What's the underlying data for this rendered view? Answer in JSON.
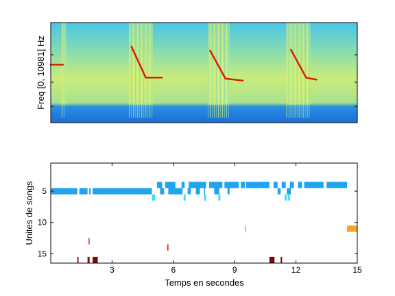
{
  "chart_data": [
    {
      "type": "heatmap",
      "title": "",
      "xlabel": "",
      "ylabel": "Freq [0, 10981] Hz",
      "xlim": [
        0,
        15
      ],
      "ylim": [
        0,
        10981
      ],
      "colormap": "jet",
      "background_level": "yellow-green with blue at bottom band",
      "high_activity_segments_seconds": [
        [
          0.55,
          0.75
        ],
        [
          3.85,
          5.0
        ],
        [
          7.7,
          8.75
        ],
        [
          11.55,
          12.7
        ]
      ],
      "call_trajectories": [
        {
          "x": [
            0.0,
            0.6
          ],
          "y_frac": [
            0.58,
            0.58
          ]
        },
        {
          "x": [
            3.95,
            4.65
          ],
          "y_frac": [
            0.76,
            0.45
          ]
        },
        {
          "x": [
            4.65,
            5.45
          ],
          "y_frac": [
            0.45,
            0.45
          ]
        },
        {
          "x": [
            7.8,
            8.55
          ],
          "y_frac": [
            0.72,
            0.44
          ]
        },
        {
          "x": [
            8.55,
            9.4
          ],
          "y_frac": [
            0.44,
            0.42
          ]
        },
        {
          "x": [
            11.75,
            12.5
          ],
          "y_frac": [
            0.73,
            0.45
          ]
        },
        {
          "x": [
            12.5,
            13.0
          ],
          "y_frac": [
            0.45,
            0.43
          ]
        }
      ]
    },
    {
      "type": "bar",
      "title": "",
      "xlabel": "Temps en secondes",
      "ylabel": "Unites de songs",
      "xlim": [
        0,
        15
      ],
      "ylim": [
        0.5,
        16.5
      ],
      "x_ticks": [
        3,
        6,
        9,
        12,
        15
      ],
      "y_ticks": [
        5,
        10,
        15
      ],
      "segments": [
        {
          "unit": 4,
          "color": "#20a4f0",
          "start": 5.2,
          "end": 5.45
        },
        {
          "unit": 4,
          "color": "#20a4f0",
          "start": 5.6,
          "end": 6.1
        },
        {
          "unit": 4,
          "color": "#20a4f0",
          "start": 6.4,
          "end": 6.55
        },
        {
          "unit": 4,
          "color": "#20a4f0",
          "start": 6.75,
          "end": 7.6
        },
        {
          "unit": 4,
          "color": "#20a4f0",
          "start": 7.75,
          "end": 8.4
        },
        {
          "unit": 4,
          "color": "#20a4f0",
          "start": 8.5,
          "end": 9.2
        },
        {
          "unit": 4,
          "color": "#20a4f0",
          "start": 9.3,
          "end": 9.5
        },
        {
          "unit": 4,
          "color": "#20a4f0",
          "start": 9.55,
          "end": 10.7
        },
        {
          "unit": 4,
          "color": "#20a4f0",
          "start": 10.9,
          "end": 11.1
        },
        {
          "unit": 4,
          "color": "#20a4f0",
          "start": 11.3,
          "end": 11.5
        },
        {
          "unit": 4,
          "color": "#20a4f0",
          "start": 11.7,
          "end": 11.9
        },
        {
          "unit": 4,
          "color": "#20a4f0",
          "start": 12.1,
          "end": 12.3
        },
        {
          "unit": 4,
          "color": "#20a4f0",
          "start": 12.4,
          "end": 13.35
        },
        {
          "unit": 4,
          "color": "#20a4f0",
          "start": 13.5,
          "end": 14.5
        },
        {
          "unit": 5,
          "color": "#20a4f0",
          "start": 0.0,
          "end": 1.3
        },
        {
          "unit": 5,
          "color": "#20a4f0",
          "start": 1.4,
          "end": 1.8
        },
        {
          "unit": 5,
          "color": "#20a4f0",
          "start": 1.88,
          "end": 1.95
        },
        {
          "unit": 5,
          "color": "#20a4f0",
          "start": 2.05,
          "end": 4.95
        },
        {
          "unit": 5,
          "color": "#20a4f0",
          "start": 5.35,
          "end": 5.55
        },
        {
          "unit": 5,
          "color": "#20a4f0",
          "start": 5.75,
          "end": 6.45
        },
        {
          "unit": 5,
          "color": "#20a4f0",
          "start": 6.7,
          "end": 6.85
        },
        {
          "unit": 5,
          "color": "#20a4f0",
          "start": 7.1,
          "end": 7.3
        },
        {
          "unit": 5,
          "color": "#20a4f0",
          "start": 7.5,
          "end": 7.55
        },
        {
          "unit": 5,
          "color": "#20a4f0",
          "start": 8.0,
          "end": 8.25
        },
        {
          "unit": 5,
          "color": "#20a4f0",
          "start": 8.65,
          "end": 8.75
        },
        {
          "unit": 5,
          "color": "#20a4f0",
          "start": 11.1,
          "end": 11.25
        },
        {
          "unit": 5,
          "color": "#20a4f0",
          "start": 11.55,
          "end": 11.75
        },
        {
          "unit": 6,
          "color": "#40dcf0",
          "start": 4.95,
          "end": 5.1
        },
        {
          "unit": 6,
          "color": "#40dcf0",
          "start": 6.5,
          "end": 6.6
        },
        {
          "unit": 6,
          "color": "#40dcf0",
          "start": 7.5,
          "end": 7.6
        },
        {
          "unit": 6,
          "color": "#40dcf0",
          "start": 8.2,
          "end": 8.3
        },
        {
          "unit": 6,
          "color": "#40dcf0",
          "start": 11.45,
          "end": 11.55
        },
        {
          "unit": 6,
          "color": "#40dcf0",
          "start": 11.6,
          "end": 11.7
        },
        {
          "unit": 11,
          "color": "#f5a623",
          "start": 9.5,
          "end": 9.55
        },
        {
          "unit": 11,
          "color": "#f5a623",
          "start": 14.5,
          "end": 15.0
        },
        {
          "unit": 13,
          "color": "#e02810",
          "start": 1.85,
          "end": 1.9
        },
        {
          "unit": 14,
          "color": "#e02810",
          "start": 5.7,
          "end": 5.76
        },
        {
          "unit": 16,
          "color": "#7a0a0a",
          "start": 1.3,
          "end": 1.36
        },
        {
          "unit": 16,
          "color": "#7a0a0a",
          "start": 1.8,
          "end": 1.9
        },
        {
          "unit": 16,
          "color": "#7a0a0a",
          "start": 2.05,
          "end": 2.3
        },
        {
          "unit": 16,
          "color": "#7a0a0a",
          "start": 10.7,
          "end": 10.95
        },
        {
          "unit": 16,
          "color": "#7a0a0a",
          "start": 11.25,
          "end": 11.32
        }
      ]
    }
  ]
}
